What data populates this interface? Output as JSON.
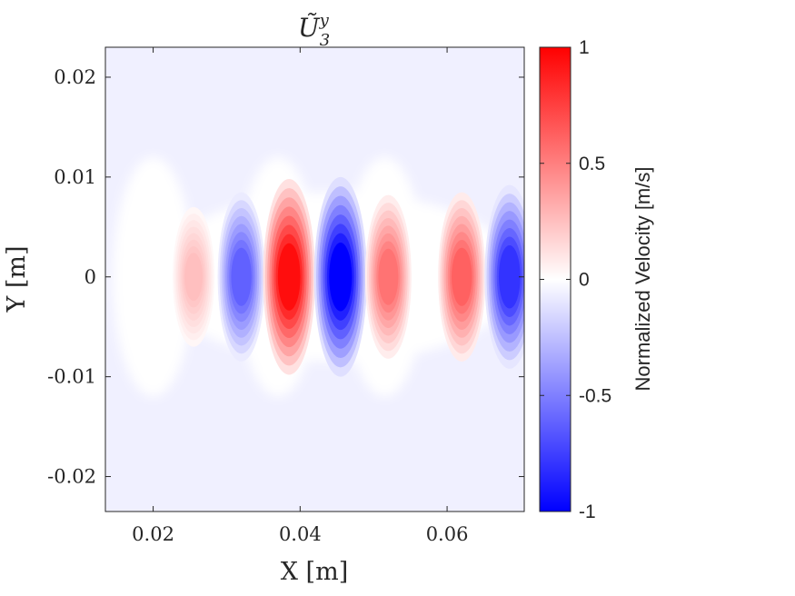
{
  "chart_data": {
    "type": "heatmap",
    "title": "Ũ",
    "title_superscript": "y",
    "title_subscript": "3",
    "xlabel": "X [m]",
    "ylabel": "Y [m]",
    "xlim": [
      0.0135,
      0.0705
    ],
    "ylim": [
      -0.0235,
      0.023
    ],
    "x_ticks": [
      0.02,
      0.04,
      0.06
    ],
    "x_tick_labels": [
      "0.02",
      "0.04",
      "0.06"
    ],
    "y_ticks": [
      0.02,
      0.01,
      0,
      -0.01,
      -0.02
    ],
    "y_tick_labels": [
      "0.02",
      "0.01",
      "0",
      "-0.01",
      "-0.02"
    ],
    "colorbar": {
      "label": "Normalized Velocity [m/s]",
      "range": [
        -1,
        1
      ],
      "ticks": [
        1,
        0.5,
        0,
        -0.5,
        -1
      ],
      "tick_labels": [
        "1",
        "0.5",
        "0",
        "-0.5",
        "-1"
      ],
      "colors": {
        "negative": "#0000ff",
        "zero": "#ffffff",
        "positive": "#ff0000"
      }
    },
    "background_value": -0.06,
    "lobes": [
      {
        "x": 0.0255,
        "y": 0.0,
        "value": 0.25
      },
      {
        "x": 0.032,
        "y": 0.0,
        "value": -0.62
      },
      {
        "x": 0.0385,
        "y": 0.0,
        "value": 0.95
      },
      {
        "x": 0.0455,
        "y": 0.0,
        "value": -1.0
      },
      {
        "x": 0.052,
        "y": 0.0,
        "value": 0.55
      },
      {
        "x": 0.062,
        "y": 0.0,
        "value": 0.62
      },
      {
        "x": 0.0685,
        "y": 0.0,
        "value": -0.8
      }
    ],
    "near_zero_regions": [
      {
        "x": 0.02,
        "y": 0.0,
        "label": "zero-region-left"
      },
      {
        "x": 0.037,
        "y": 0.0,
        "label": "zero-region-center"
      },
      {
        "x": 0.0515,
        "y": 0.0,
        "label": "zero-region-right"
      }
    ]
  }
}
